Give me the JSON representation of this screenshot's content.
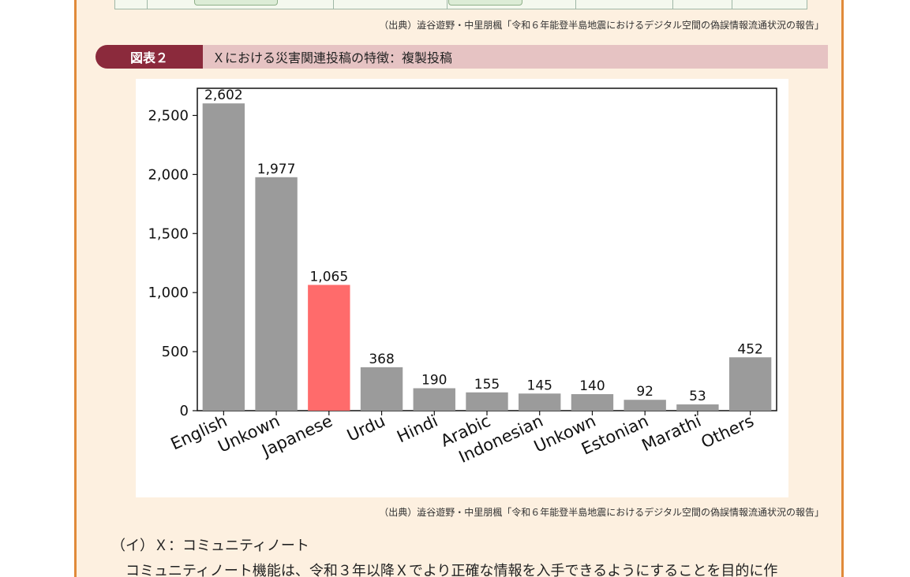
{
  "source_top": "（出典）澁谷遊野・中里朋楓「令和６年能登半島地震におけるデジタル空間の偽誤情報流通状況の報告」",
  "figure": {
    "badge": "図表２",
    "title": "Ｘにおける災害関連投稿の特徴：複製投稿"
  },
  "source_bottom": "（出典）澁谷遊野・中里朋楓「令和６年能登半島地震におけるデジタル空間の偽誤情報流通状況の報告」",
  "section": {
    "heading": "（イ）Ｘ：コミュニティノート",
    "paragraph": "コミュニティノート機能は、令和３年以降Ｘでより正確な情報を入手できるようにすることを目的に作"
  },
  "colors": {
    "bar_default": "#9b9b9b",
    "bar_highlight": "#ff6b6b",
    "badge": "#8b2a3c",
    "title_bar": "#e6c3c3",
    "panel": "#fdf0e0",
    "panel_border": "#e08a3a"
  },
  "chart_data": {
    "type": "bar",
    "categories": [
      "English",
      "Unkown",
      "Japanese",
      "Urdu",
      "Hindi",
      "Arabic",
      "Indonesian",
      "Unkown",
      "Estonian",
      "Marathi",
      "Others"
    ],
    "values": [
      2602,
      1977,
      1065,
      368,
      190,
      155,
      145,
      140,
      92,
      53,
      452
    ],
    "value_labels": [
      "2,602",
      "1,977",
      "1,065",
      "368",
      "190",
      "155",
      "145",
      "140",
      "92",
      "53",
      "452"
    ],
    "highlight_index": 2,
    "yticks": [
      0,
      500,
      1000,
      1500,
      2000,
      2500
    ],
    "ytick_labels": [
      "0",
      "500",
      "1,000",
      "1,500",
      "2,000",
      "2,500"
    ],
    "ylim": [
      0,
      2730
    ],
    "xlabel": "",
    "ylabel": "",
    "title": "",
    "grid": false
  }
}
